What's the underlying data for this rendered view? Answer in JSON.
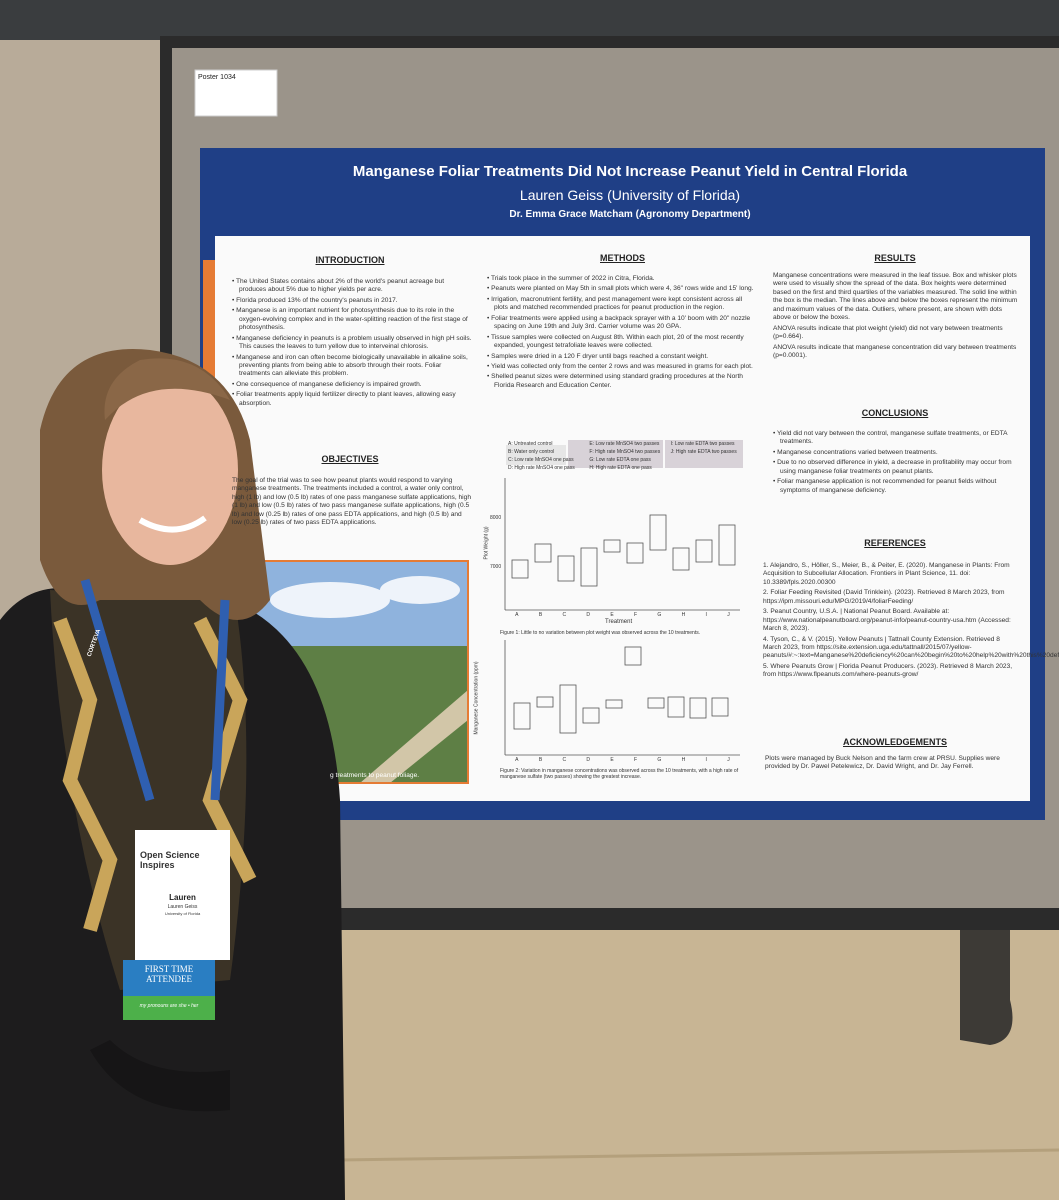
{
  "poster_label": "Poster 1034",
  "header": {
    "title": "Manganese Foliar Treatments Did Not Increase Peanut Yield in Central Florida",
    "author": "Lauren Geiss (University of Florida)",
    "advisor": "Dr. Emma Grace Matcham (Agronomy Department)"
  },
  "introduction": {
    "heading": "INTRODUCTION",
    "bullets": [
      "The United States contains about 2% of the world's peanut acreage but produces about 5% due to higher yields per acre.",
      "Florida produced 13% of the country's peanuts in 2017.",
      "Manganese is an important nutrient for photosynthesis due to its role in the oxygen-evolving complex and in the water-splitting reaction of the first stage of photosynthesis.",
      "Manganese deficiency in peanuts is a problem usually observed in high pH soils. This causes the leaves to turn yellow due to interveinal chlorosis.",
      "Manganese and iron can often become biologically unavailable in alkaline soils, preventing plants from being able to absorb through their roots. Foliar treatments can alleviate this problem.",
      "One consequence of manganese deficiency is impaired growth.",
      "Foliar treatments apply liquid fertilizer directly to plant leaves, allowing easy absorption."
    ]
  },
  "objectives": {
    "heading": "OBJECTIVES",
    "text": "The goal of the trial was to see how peanut plants would respond to varying manganese treatments. The treatments included a control, a water only control, high (1 lb) and low (0.5 lb) rates of one pass manganese sulfate applications, high (1 lb) and low (0.5 lb) rates of two pass manganese sulfate applications, high (0.5 lb) and low (0.25 lb) rates of one pass EDTA applications, and high (0.5 lb) and low (0.25 lb) rates of two pass EDTA applications."
  },
  "photo_caption": "g treatments to peanut foliage.",
  "methods": {
    "heading": "METHODS",
    "bullets": [
      "Trials took place in the summer of 2022 in Citra, Florida.",
      "Peanuts were planted on May 5th in small plots which were 4, 36\" rows wide and 15' long.",
      "Irrigation, macronutrient fertility, and pest management were kept consistent across all plots and matched recommended practices for peanut production in the region.",
      "Foliar treatments were applied using a backpack sprayer with a 10' boom with 20\" nozzle spacing on June 19th and July 3rd. Carrier volume was 20 GPA.",
      "Tissue samples were collected on August 8th. Within each plot, 20 of the most recently expanded, youngest tetrafoliate leaves were collected.",
      "Samples were dried in a 120 F dryer until bags reached a constant weight.",
      "Yield was collected only from the center 2 rows and was measured in grams for each plot.",
      "Shelled peanut sizes were determined using standard grading procedures at the North Florida Research and Education Center."
    ]
  },
  "figure_legend": [
    "A: Untreated control",
    "B: Water only control",
    "C: Low rate MnSO4 one pass",
    "D: High rate MnSO4 one pass",
    "E: Low rate MnSO4 two passes",
    "F: High rate MnSO4 two passes",
    "G: Low rate EDTA one pass",
    "H: High rate EDTA one pass",
    "I: Low rate EDTA two passes",
    "J: High rate EDTA two passes"
  ],
  "figure1": {
    "y_label": "Plot Weight (g)",
    "y_tick_labels": [
      "8000",
      "7000"
    ],
    "x_label": "Treatment",
    "categories": [
      "A",
      "B",
      "C",
      "D",
      "E",
      "F",
      "G",
      "H",
      "I",
      "J"
    ],
    "caption": "Figure 1: Little to no variation between plot weight was observed across the 10 treatments."
  },
  "figure2": {
    "y_label": "Manganese Concentration (ppm)",
    "categories": [
      "A",
      "B",
      "C",
      "D",
      "E",
      "F",
      "G",
      "H",
      "I",
      "J"
    ],
    "caption": "Figure 2: Variation in manganese concentrations was observed across the 10 treatments, with a high rate of manganese sulfate (two passes) showing the greatest increase."
  },
  "results": {
    "heading": "RESULTS",
    "paragraphs": [
      "Manganese concentrations were measured in the leaf tissue. Box and whisker plots were used to visually show the spread of the data. Box heights were determined based on the first and third quartiles of the variables measured. The solid line within the box is the median. The lines above and below the boxes represent the minimum and maximum values of the data. Outliers, where present, are shown with dots above or below the boxes.",
      "ANOVA results indicate that plot weight (yield) did not vary between treatments (p=0.664).",
      "ANOVA results indicate that manganese concentration did vary between treatments (p=0.0001)."
    ]
  },
  "conclusions": {
    "heading": "CONCLUSIONS",
    "bullets": [
      "Yield did not vary between the control, manganese sulfate treatments, or EDTA treatments.",
      "Manganese concentrations varied between treatments.",
      "Due to no observed difference in yield, a decrease in profitability may occur from using manganese foliar treatments on peanut plants.",
      "Foliar manganese application is not recommended for peanut fields without symptoms of manganese deficiency."
    ]
  },
  "references": {
    "heading": "REFERENCES",
    "items": [
      "1. Alejandro, S., Höller, S., Meier, B., & Peiter, E. (2020). Manganese in Plants: From Acquisition to Subcellular Allocation. Frontiers in Plant Science, 11. doi: 10.3389/fpls.2020.00300",
      "2. Foliar Feeding Revisited (David Trinklein). (2023). Retrieved 8 March 2023, from https://ipm.missouri.edu/MPG/2019/4/foliarFeeding/",
      "3. Peanut Country, U.S.A. | National Peanut Board. Available at: https://www.nationalpeanutboard.org/peanut-info/peanut-country-usa.htm (Accessed: March 8, 2023).",
      "4. Tyson, C., & V. (2015). Yellow Peanuts | Tattnall County Extension. Retrieved 8 March 2023, from https://site.extension.uga.edu/tattnall/2015/07/yellow-peanuts/#:~:text=Manganese%20deficiency%20can%20begin%20to%20help%20with%20this%20deficiency.",
      "5. Where Peanuts Grow | Florida Peanut Producers. (2023). Retrieved 8 March 2023, from https://www.flpeanuts.com/where-peanuts-grow/"
    ]
  },
  "acknowledgements": {
    "heading": "ACKNOWLEDGEMENTS",
    "text": "Plots were managed by Buck Nelson and the farm crew at PRSU. Supplies were provided by Dr. Pawel Petelewicz, Dr. David Wright, and Dr. Jay Ferrell."
  },
  "badge": {
    "event": "Open Science Inspires",
    "first_name": "Lauren",
    "full_name": "Lauren Geiss",
    "affiliation": "University of Florida",
    "ribbon": "FIRST TIME ATTENDEE",
    "pronouns": "my pronouns are she • her",
    "lanyard": "CORTEVA"
  }
}
